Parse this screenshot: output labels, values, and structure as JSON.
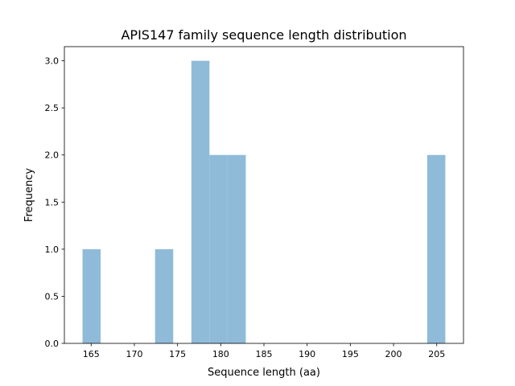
{
  "chart_data": {
    "type": "bar",
    "title": "APIS147 family sequence length distribution",
    "xlabel": "Sequence length (aa)",
    "ylabel": "Frequency",
    "bin_edges": [
      164,
      166.1,
      168.2,
      170.3,
      172.4,
      174.5,
      176.6,
      178.7,
      180.8,
      182.9,
      185.0,
      187.1,
      189.2,
      191.3,
      193.4,
      195.5,
      197.6,
      199.7,
      201.8,
      203.9,
      206
    ],
    "counts": [
      1,
      0,
      0,
      0,
      1,
      0,
      3,
      2,
      2,
      0,
      0,
      0,
      0,
      0,
      0,
      0,
      0,
      0,
      0,
      2
    ],
    "xlim": [
      161.9,
      208.1
    ],
    "ylim": [
      0,
      3.15
    ],
    "xticks": [
      165,
      170,
      175,
      180,
      185,
      190,
      195,
      200,
      205
    ],
    "yticks": [
      0.0,
      0.5,
      1.0,
      1.5,
      2.0,
      2.5,
      3.0
    ],
    "grid": false,
    "bar_color": "#8fbbd9"
  }
}
